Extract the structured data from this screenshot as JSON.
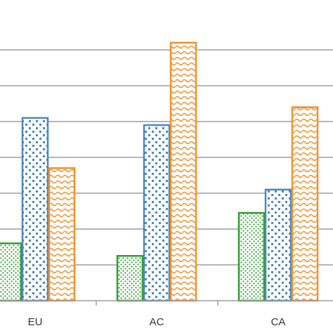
{
  "chart_data": {
    "type": "bar",
    "categories": [
      "EU",
      "AC",
      "CA"
    ],
    "series": [
      {
        "values": [
          1.6,
          1.25,
          2.45
        ],
        "color": "#2ca02c",
        "pattern": "small-dots"
      },
      {
        "values": [
          5.1,
          4.9,
          3.1
        ],
        "color": "#4a86c8",
        "pattern": "large-dots"
      },
      {
        "values": [
          3.7,
          7.2,
          5.4
        ],
        "color": "#f5902a",
        "pattern": "waves"
      }
    ],
    "ylim": [
      0,
      7.6
    ],
    "grid": true,
    "gridline_interval": 1,
    "legend": "none"
  }
}
